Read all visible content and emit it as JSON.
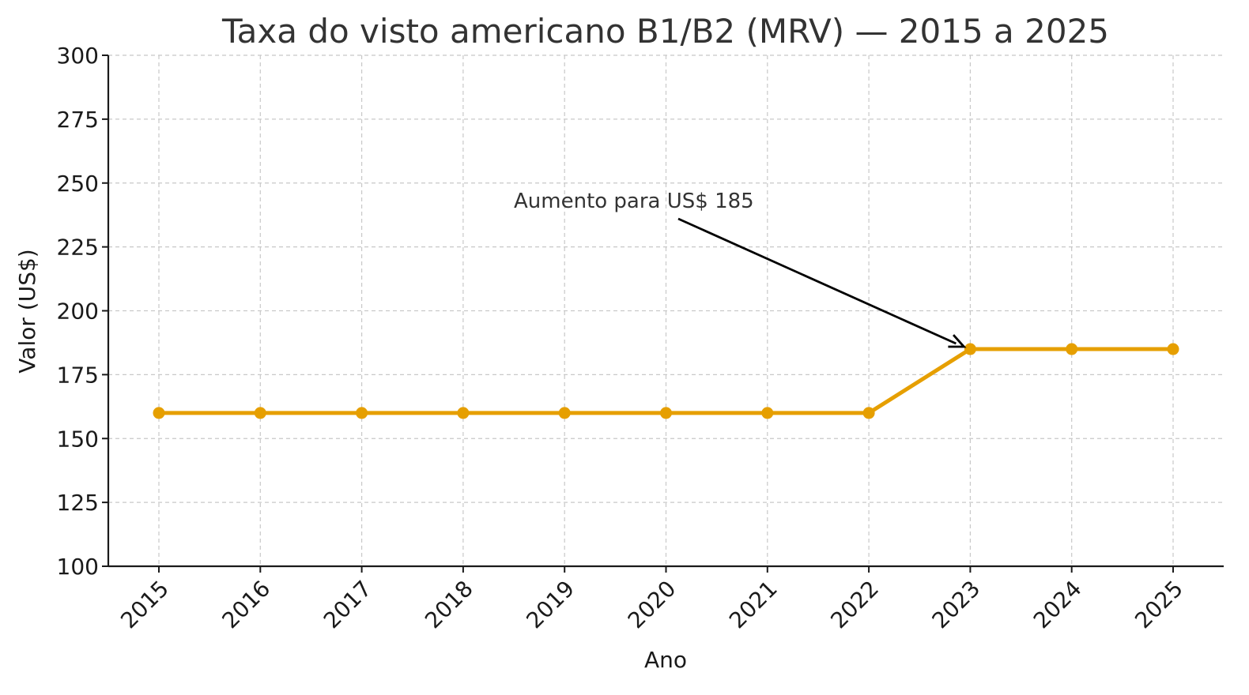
{
  "chart_data": {
    "type": "line",
    "title": "Taxa do visto americano B1/B2 (MRV) — 2015 a 2025",
    "xlabel": "Ano",
    "ylabel": "Valor (US$)",
    "categories": [
      "2015",
      "2016",
      "2017",
      "2018",
      "2019",
      "2020",
      "2021",
      "2022",
      "2023",
      "2024",
      "2025"
    ],
    "yticks": [
      "100",
      "125",
      "150",
      "175",
      "200",
      "225",
      "250",
      "275",
      "300"
    ],
    "ylim": [
      100,
      300
    ],
    "grid": true,
    "series": [
      {
        "values": [
          160,
          160,
          160,
          160,
          160,
          160,
          160,
          160,
          185,
          185,
          185
        ],
        "color": "#E69F00"
      }
    ],
    "annotation": {
      "text": "Aumento para US$ 185",
      "target_category": "2023",
      "target_value": 185,
      "text_anchor_category_position": 5.85,
      "text_anchor_value": 240
    }
  }
}
